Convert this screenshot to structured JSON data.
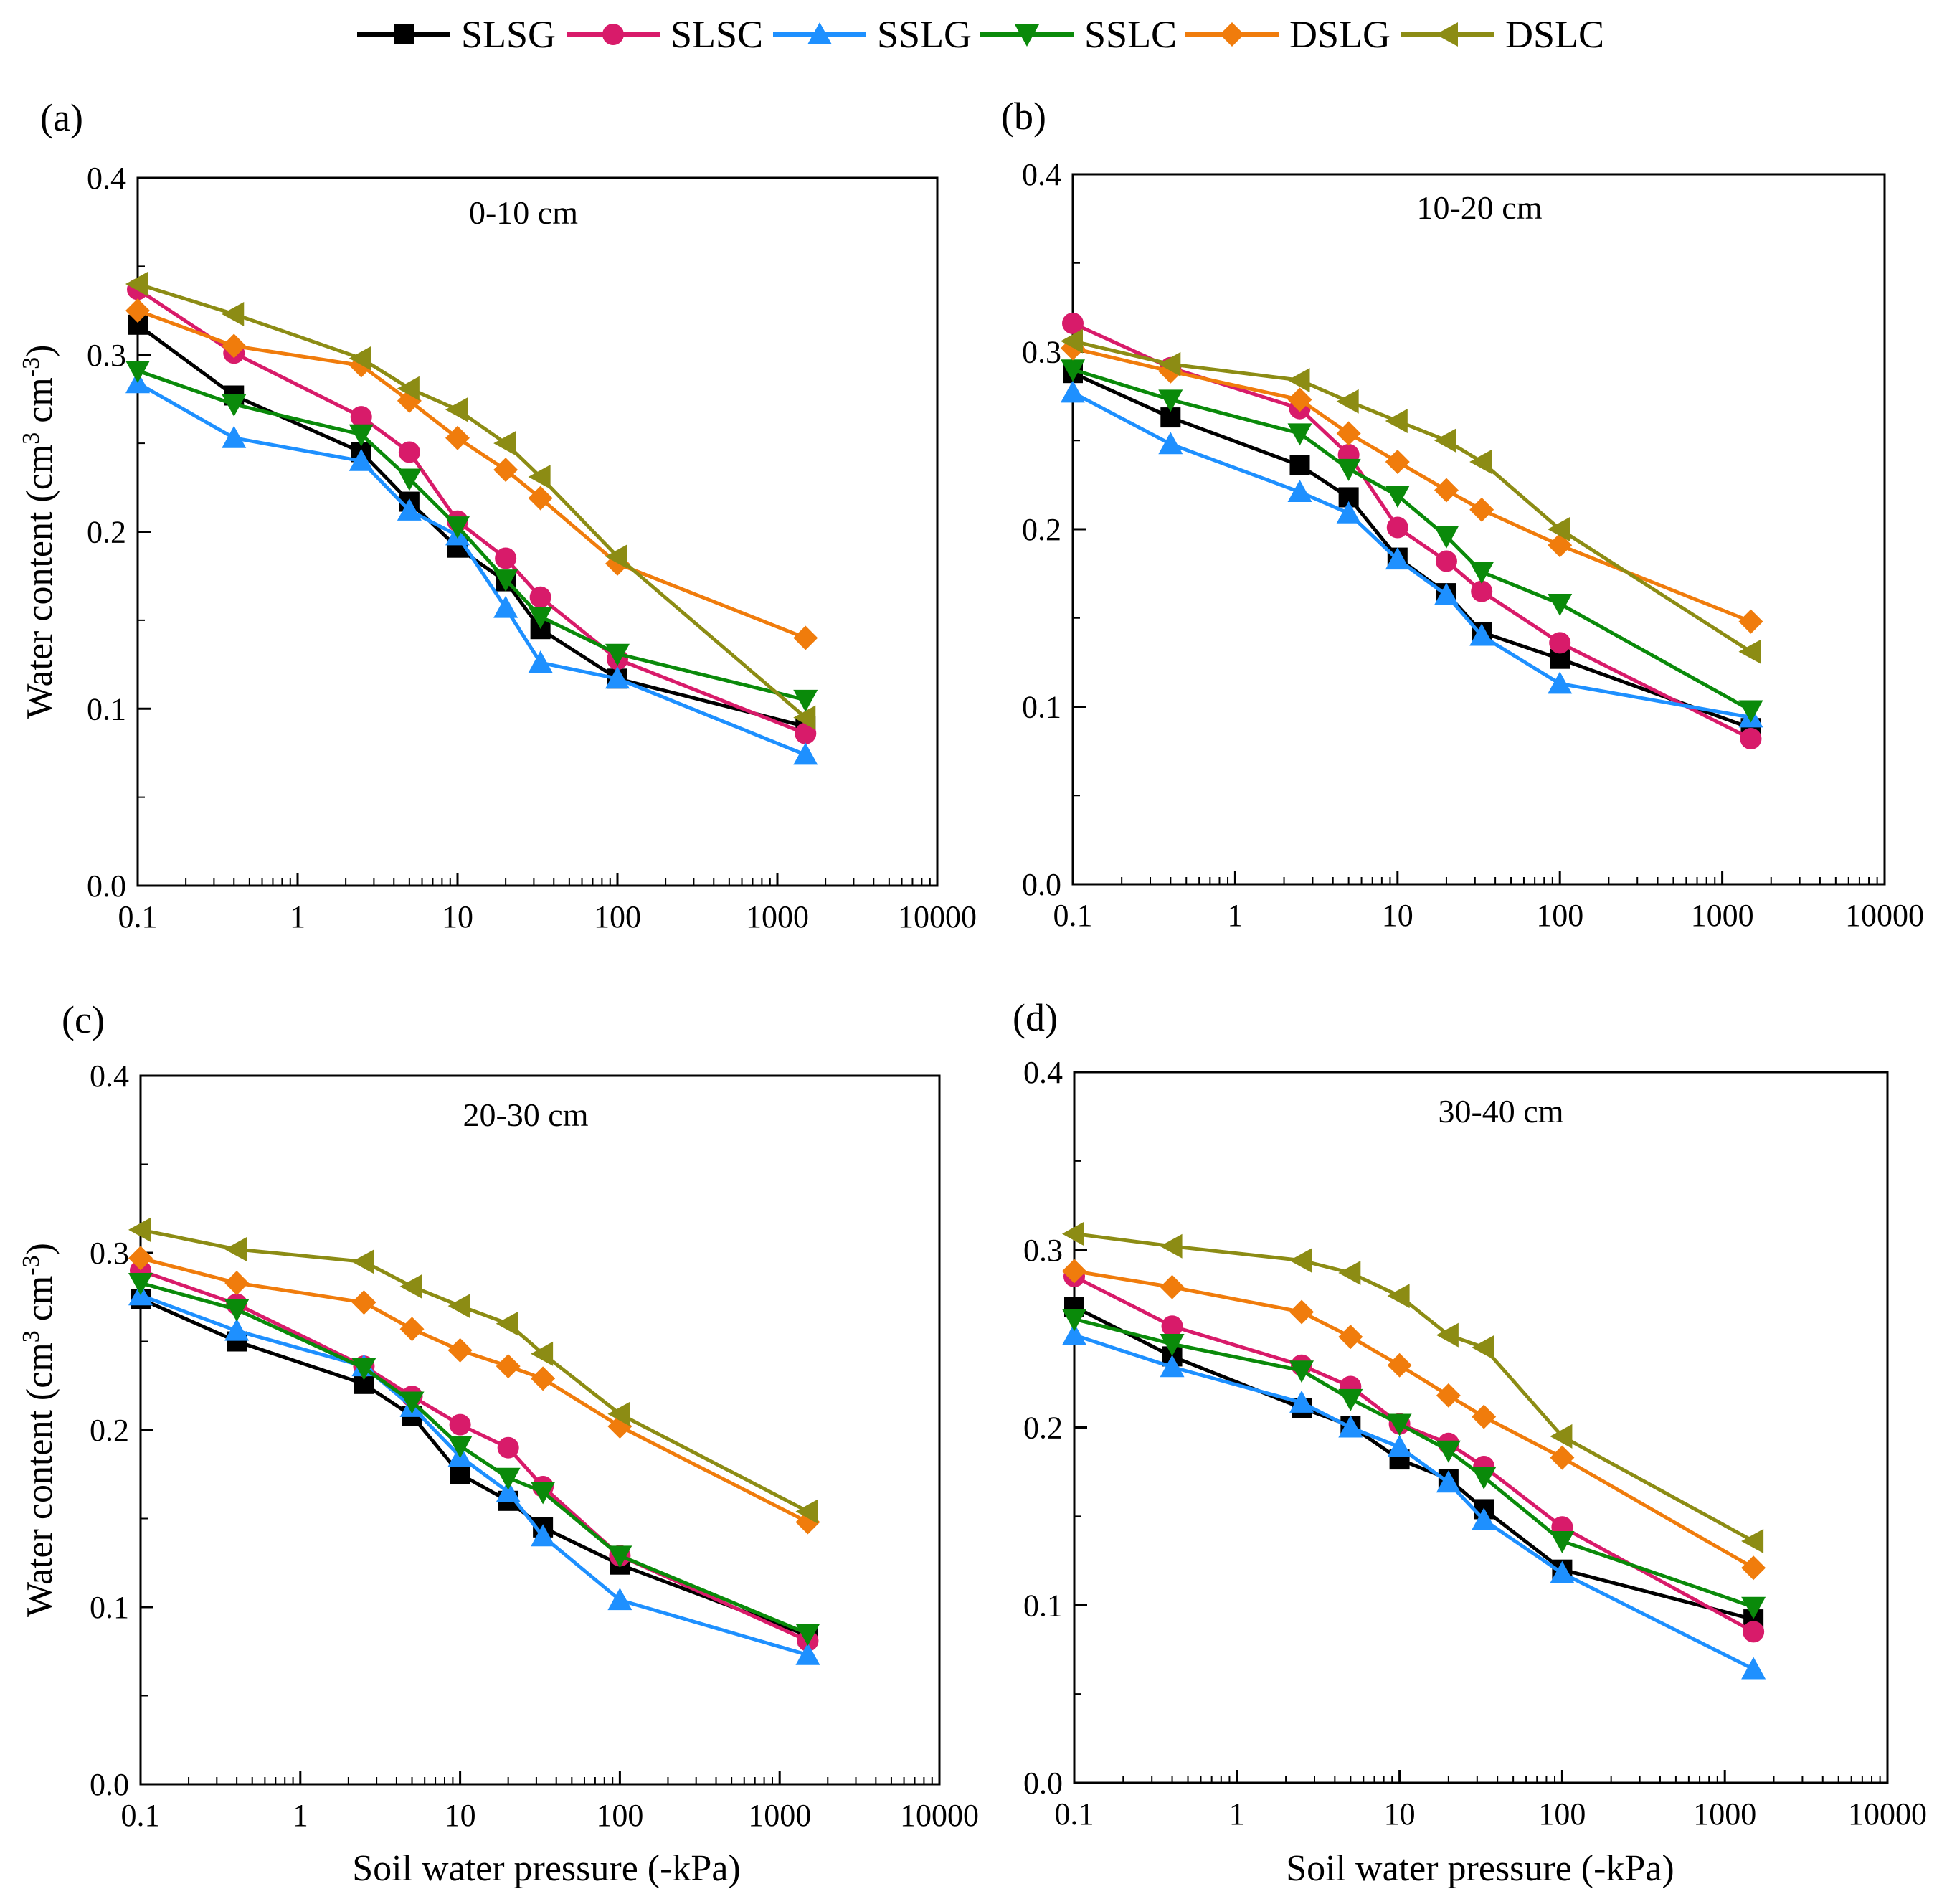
{
  "figure": {
    "xlabel": "Soil water  pressure (-kPa)",
    "ylabel_main": "Water content (cm",
    "ylabel_sup1": "3",
    "ylabel_mid": " cm",
    "ylabel_sup2": "-3",
    "ylabel_end": ")"
  },
  "legend": [
    {
      "name": "SLSG",
      "color": "#000000",
      "marker": "square"
    },
    {
      "name": "SLSC",
      "color": "#d81b6a",
      "marker": "circle"
    },
    {
      "name": "SSLG",
      "color": "#1e90ff",
      "marker": "triangle-up"
    },
    {
      "name": "SSLC",
      "color": "#0a8a0a",
      "marker": "triangle-down"
    },
    {
      "name": "DSLG",
      "color": "#f07c0c",
      "marker": "diamond"
    },
    {
      "name": "DSLC",
      "color": "#8c8c14",
      "marker": "triangle-left"
    }
  ],
  "chart_data": [
    {
      "type": "line",
      "panel": "(a)",
      "depth": "0-10 cm",
      "xscale": "log",
      "xlim": [
        0.1,
        10000
      ],
      "ylim": [
        0.0,
        0.4
      ],
      "xticks": [
        "0.1",
        "1",
        "10",
        "100",
        "1000",
        "10000"
      ],
      "yticks": [
        "0.0",
        "0.1",
        "0.2",
        "0.3",
        "0.4"
      ],
      "x": [
        0.1,
        0.4,
        2.5,
        5,
        10,
        20,
        33,
        100,
        1500
      ],
      "series": [
        {
          "name": "SLSG",
          "values": [
            0.317,
            0.277,
            0.245,
            0.217,
            0.191,
            0.172,
            0.145,
            0.117,
            0.09
          ]
        },
        {
          "name": "SLSC",
          "values": [
            0.337,
            0.301,
            0.265,
            0.245,
            0.206,
            0.185,
            0.163,
            0.128,
            0.086
          ]
        },
        {
          "name": "SSLG",
          "values": [
            0.284,
            0.253,
            0.24,
            0.212,
            0.198,
            0.157,
            0.126,
            0.117,
            0.074
          ]
        },
        {
          "name": "SSLC",
          "values": [
            0.291,
            0.272,
            0.255,
            0.23,
            0.203,
            0.173,
            0.152,
            0.131,
            0.105
          ]
        },
        {
          "name": "DSLG",
          "values": [
            0.325,
            0.305,
            0.294,
            0.274,
            0.253,
            0.235,
            0.219,
            0.182,
            0.14
          ]
        },
        {
          "name": "DSLC",
          "values": [
            0.34,
            0.323,
            0.298,
            0.281,
            0.269,
            0.25,
            0.231,
            0.186,
            0.095
          ]
        }
      ]
    },
    {
      "type": "line",
      "panel": "(b)",
      "depth": "10-20 cm",
      "xscale": "log",
      "xlim": [
        0.1,
        10000
      ],
      "ylim": [
        0.0,
        0.4
      ],
      "xticks": [
        "0.1",
        "1",
        "10",
        "100",
        "1000",
        "10000"
      ],
      "yticks": [
        "0.0",
        "0.1",
        "0.2",
        "0.3",
        "0.4"
      ],
      "x": [
        0.1,
        0.4,
        2.5,
        5,
        10,
        20,
        33,
        100,
        1500
      ],
      "series": [
        {
          "name": "SLSG",
          "values": [
            0.288,
            0.263,
            0.236,
            0.218,
            0.184,
            0.164,
            0.142,
            0.127,
            0.088
          ]
        },
        {
          "name": "SLSC",
          "values": [
            0.316,
            0.291,
            0.268,
            0.242,
            0.201,
            0.182,
            0.165,
            0.136,
            0.082
          ]
        },
        {
          "name": "SSLG",
          "values": [
            0.277,
            0.248,
            0.221,
            0.209,
            0.183,
            0.163,
            0.14,
            0.113,
            0.094
          ]
        },
        {
          "name": "SSLC",
          "values": [
            0.29,
            0.273,
            0.254,
            0.234,
            0.219,
            0.196,
            0.176,
            0.158,
            0.098
          ]
        },
        {
          "name": "DSLG",
          "values": [
            0.302,
            0.289,
            0.273,
            0.254,
            0.238,
            0.222,
            0.211,
            0.191,
            0.148
          ]
        },
        {
          "name": "DSLC",
          "values": [
            0.306,
            0.293,
            0.284,
            0.272,
            0.261,
            0.25,
            0.238,
            0.2,
            0.131
          ]
        }
      ]
    },
    {
      "type": "line",
      "panel": "(c)",
      "depth": "20-30 cm",
      "xscale": "log",
      "xlim": [
        0.1,
        10000
      ],
      "ylim": [
        0.0,
        0.4
      ],
      "xticks": [
        "0.1",
        "1",
        "10",
        "100",
        "1000",
        "10000"
      ],
      "yticks": [
        "0.0",
        "0.1",
        "0.2",
        "0.3",
        "0.4"
      ],
      "x": [
        0.1,
        0.4,
        2.5,
        5,
        10,
        20,
        33,
        100,
        1500
      ],
      "series": [
        {
          "name": "SLSG",
          "values": [
            0.274,
            0.25,
            0.226,
            0.208,
            0.175,
            0.16,
            0.145,
            0.124,
            0.084
          ]
        },
        {
          "name": "SLSC",
          "values": [
            0.29,
            0.271,
            0.236,
            0.219,
            0.203,
            0.19,
            0.168,
            0.129,
            0.081
          ]
        },
        {
          "name": "SSLG",
          "values": [
            0.276,
            0.256,
            0.236,
            0.213,
            0.185,
            0.165,
            0.14,
            0.104,
            0.073
          ]
        },
        {
          "name": "SSLC",
          "values": [
            0.283,
            0.268,
            0.235,
            0.216,
            0.191,
            0.173,
            0.165,
            0.129,
            0.085
          ]
        },
        {
          "name": "DSLG",
          "values": [
            0.297,
            0.283,
            0.272,
            0.257,
            0.245,
            0.236,
            0.229,
            0.202,
            0.148
          ]
        },
        {
          "name": "DSLC",
          "values": [
            0.313,
            0.302,
            0.295,
            0.281,
            0.27,
            0.26,
            0.243,
            0.209,
            0.154
          ]
        }
      ]
    },
    {
      "type": "line",
      "panel": "(d)",
      "depth": "30-40 cm",
      "xscale": "log",
      "xlim": [
        0.1,
        10000
      ],
      "ylim": [
        0.0,
        0.4
      ],
      "xticks": [
        "0.1",
        "1",
        "10",
        "100",
        "1000",
        "10000"
      ],
      "yticks": [
        "0.0",
        "0.1",
        "0.2",
        "0.3",
        "0.4"
      ],
      "x": [
        0.1,
        0.4,
        2.5,
        5,
        10,
        20,
        33,
        100,
        1500
      ],
      "series": [
        {
          "name": "SLSG",
          "values": [
            0.268,
            0.24,
            0.211,
            0.201,
            0.182,
            0.171,
            0.154,
            0.12,
            0.092
          ]
        },
        {
          "name": "SLSC",
          "values": [
            0.285,
            0.257,
            0.235,
            0.223,
            0.202,
            0.191,
            0.178,
            0.144,
            0.085
          ]
        },
        {
          "name": "SSLG",
          "values": [
            0.252,
            0.234,
            0.214,
            0.2,
            0.189,
            0.169,
            0.148,
            0.118,
            0.064
          ]
        },
        {
          "name": "SSLC",
          "values": [
            0.261,
            0.247,
            0.232,
            0.216,
            0.202,
            0.187,
            0.172,
            0.136,
            0.099
          ]
        },
        {
          "name": "DSLG",
          "values": [
            0.288,
            0.279,
            0.265,
            0.251,
            0.235,
            0.218,
            0.206,
            0.183,
            0.121
          ]
        },
        {
          "name": "DSLC",
          "values": [
            0.309,
            0.302,
            0.294,
            0.287,
            0.274,
            0.252,
            0.245,
            0.195,
            0.136
          ]
        }
      ]
    }
  ]
}
